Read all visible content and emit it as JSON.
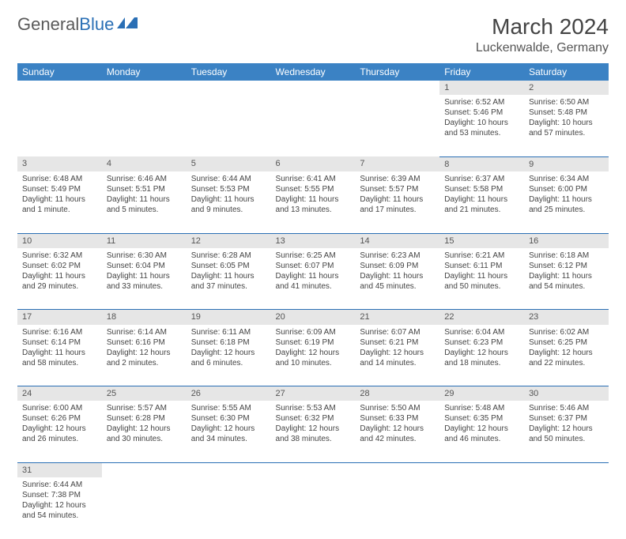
{
  "brand": {
    "name1": "General",
    "name2": "Blue"
  },
  "title": "March 2024",
  "location": "Luckenwalde, Germany",
  "colors": {
    "header_bg": "#3b82c4",
    "header_text": "#ffffff",
    "daynum_bg": "#e6e6e6",
    "row_divider": "#2a6fb5",
    "text": "#444444"
  },
  "day_headers": [
    "Sunday",
    "Monday",
    "Tuesday",
    "Wednesday",
    "Thursday",
    "Friday",
    "Saturday"
  ],
  "weeks": [
    [
      null,
      null,
      null,
      null,
      null,
      {
        "n": "1",
        "sr": "Sunrise: 6:52 AM",
        "ss": "Sunset: 5:46 PM",
        "dl": "Daylight: 10 hours and 53 minutes."
      },
      {
        "n": "2",
        "sr": "Sunrise: 6:50 AM",
        "ss": "Sunset: 5:48 PM",
        "dl": "Daylight: 10 hours and 57 minutes."
      }
    ],
    [
      {
        "n": "3",
        "sr": "Sunrise: 6:48 AM",
        "ss": "Sunset: 5:49 PM",
        "dl": "Daylight: 11 hours and 1 minute."
      },
      {
        "n": "4",
        "sr": "Sunrise: 6:46 AM",
        "ss": "Sunset: 5:51 PM",
        "dl": "Daylight: 11 hours and 5 minutes."
      },
      {
        "n": "5",
        "sr": "Sunrise: 6:44 AM",
        "ss": "Sunset: 5:53 PM",
        "dl": "Daylight: 11 hours and 9 minutes."
      },
      {
        "n": "6",
        "sr": "Sunrise: 6:41 AM",
        "ss": "Sunset: 5:55 PM",
        "dl": "Daylight: 11 hours and 13 minutes."
      },
      {
        "n": "7",
        "sr": "Sunrise: 6:39 AM",
        "ss": "Sunset: 5:57 PM",
        "dl": "Daylight: 11 hours and 17 minutes."
      },
      {
        "n": "8",
        "sr": "Sunrise: 6:37 AM",
        "ss": "Sunset: 5:58 PM",
        "dl": "Daylight: 11 hours and 21 minutes."
      },
      {
        "n": "9",
        "sr": "Sunrise: 6:34 AM",
        "ss": "Sunset: 6:00 PM",
        "dl": "Daylight: 11 hours and 25 minutes."
      }
    ],
    [
      {
        "n": "10",
        "sr": "Sunrise: 6:32 AM",
        "ss": "Sunset: 6:02 PM",
        "dl": "Daylight: 11 hours and 29 minutes."
      },
      {
        "n": "11",
        "sr": "Sunrise: 6:30 AM",
        "ss": "Sunset: 6:04 PM",
        "dl": "Daylight: 11 hours and 33 minutes."
      },
      {
        "n": "12",
        "sr": "Sunrise: 6:28 AM",
        "ss": "Sunset: 6:05 PM",
        "dl": "Daylight: 11 hours and 37 minutes."
      },
      {
        "n": "13",
        "sr": "Sunrise: 6:25 AM",
        "ss": "Sunset: 6:07 PM",
        "dl": "Daylight: 11 hours and 41 minutes."
      },
      {
        "n": "14",
        "sr": "Sunrise: 6:23 AM",
        "ss": "Sunset: 6:09 PM",
        "dl": "Daylight: 11 hours and 45 minutes."
      },
      {
        "n": "15",
        "sr": "Sunrise: 6:21 AM",
        "ss": "Sunset: 6:11 PM",
        "dl": "Daylight: 11 hours and 50 minutes."
      },
      {
        "n": "16",
        "sr": "Sunrise: 6:18 AM",
        "ss": "Sunset: 6:12 PM",
        "dl": "Daylight: 11 hours and 54 minutes."
      }
    ],
    [
      {
        "n": "17",
        "sr": "Sunrise: 6:16 AM",
        "ss": "Sunset: 6:14 PM",
        "dl": "Daylight: 11 hours and 58 minutes."
      },
      {
        "n": "18",
        "sr": "Sunrise: 6:14 AM",
        "ss": "Sunset: 6:16 PM",
        "dl": "Daylight: 12 hours and 2 minutes."
      },
      {
        "n": "19",
        "sr": "Sunrise: 6:11 AM",
        "ss": "Sunset: 6:18 PM",
        "dl": "Daylight: 12 hours and 6 minutes."
      },
      {
        "n": "20",
        "sr": "Sunrise: 6:09 AM",
        "ss": "Sunset: 6:19 PM",
        "dl": "Daylight: 12 hours and 10 minutes."
      },
      {
        "n": "21",
        "sr": "Sunrise: 6:07 AM",
        "ss": "Sunset: 6:21 PM",
        "dl": "Daylight: 12 hours and 14 minutes."
      },
      {
        "n": "22",
        "sr": "Sunrise: 6:04 AM",
        "ss": "Sunset: 6:23 PM",
        "dl": "Daylight: 12 hours and 18 minutes."
      },
      {
        "n": "23",
        "sr": "Sunrise: 6:02 AM",
        "ss": "Sunset: 6:25 PM",
        "dl": "Daylight: 12 hours and 22 minutes."
      }
    ],
    [
      {
        "n": "24",
        "sr": "Sunrise: 6:00 AM",
        "ss": "Sunset: 6:26 PM",
        "dl": "Daylight: 12 hours and 26 minutes."
      },
      {
        "n": "25",
        "sr": "Sunrise: 5:57 AM",
        "ss": "Sunset: 6:28 PM",
        "dl": "Daylight: 12 hours and 30 minutes."
      },
      {
        "n": "26",
        "sr": "Sunrise: 5:55 AM",
        "ss": "Sunset: 6:30 PM",
        "dl": "Daylight: 12 hours and 34 minutes."
      },
      {
        "n": "27",
        "sr": "Sunrise: 5:53 AM",
        "ss": "Sunset: 6:32 PM",
        "dl": "Daylight: 12 hours and 38 minutes."
      },
      {
        "n": "28",
        "sr": "Sunrise: 5:50 AM",
        "ss": "Sunset: 6:33 PM",
        "dl": "Daylight: 12 hours and 42 minutes."
      },
      {
        "n": "29",
        "sr": "Sunrise: 5:48 AM",
        "ss": "Sunset: 6:35 PM",
        "dl": "Daylight: 12 hours and 46 minutes."
      },
      {
        "n": "30",
        "sr": "Sunrise: 5:46 AM",
        "ss": "Sunset: 6:37 PM",
        "dl": "Daylight: 12 hours and 50 minutes."
      }
    ],
    [
      {
        "n": "31",
        "sr": "Sunrise: 6:44 AM",
        "ss": "Sunset: 7:38 PM",
        "dl": "Daylight: 12 hours and 54 minutes."
      },
      null,
      null,
      null,
      null,
      null,
      null
    ]
  ]
}
